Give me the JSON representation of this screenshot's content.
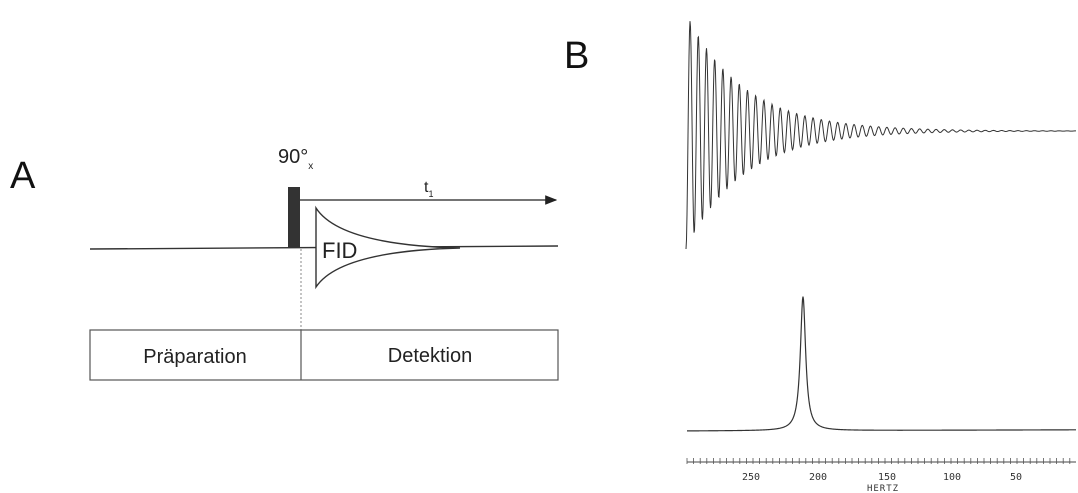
{
  "panels": {
    "a_label": "A",
    "b_label": "B"
  },
  "pulse_sequence": {
    "pulse_label": "90°",
    "pulse_subscript": "x",
    "time_label": "t",
    "time_subscript": "1",
    "fid_label": "FID",
    "phases": [
      "Präparation",
      "Detektion"
    ]
  },
  "spectrum": {
    "axis_title": "HERTZ",
    "tick_labels": [
      "250",
      "200",
      "150",
      "100",
      "50"
    ]
  },
  "colors": {
    "ink": "#222222",
    "pulse_block": "#333333"
  }
}
